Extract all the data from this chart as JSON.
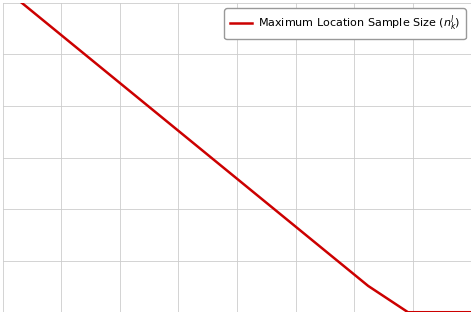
{
  "line_x": [
    0,
    0.78,
    0.865,
    1.05
  ],
  "line_y": [
    1.05,
    0.085,
    0.0,
    0.0
  ],
  "line_color": "#cc0000",
  "line_width": 1.8,
  "legend_label": "Maximum Location Sample Size $(n_k^l)$",
  "legend_loc": "upper right",
  "grid_color": "#cccccc",
  "grid_linewidth": 0.6,
  "background_color": "#ffffff",
  "xlim": [
    0,
    1
  ],
  "ylim": [
    0,
    1
  ],
  "n_xgrid": 8,
  "n_ygrid": 6
}
